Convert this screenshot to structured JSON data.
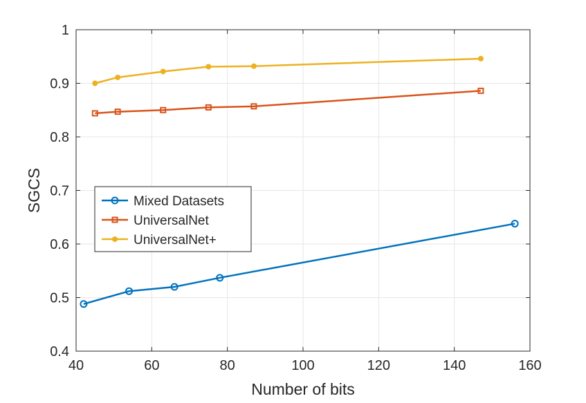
{
  "chart_data": {
    "type": "line",
    "title": "",
    "xlabel": "Number of bits",
    "ylabel": "SGCS",
    "xlim": [
      40,
      160
    ],
    "ylim": [
      0.4,
      1
    ],
    "xticks": [
      40,
      60,
      80,
      100,
      120,
      140,
      160
    ],
    "xtick_labels": [
      "40",
      "60",
      "80",
      "100",
      "120",
      "140",
      "160"
    ],
    "yticks": [
      0.4,
      0.5,
      0.6,
      0.7,
      0.8,
      0.9,
      1
    ],
    "ytick_labels": [
      "0.4",
      "0.5",
      "0.6",
      "0.7",
      "0.8",
      "0.9",
      "1"
    ],
    "grid": true,
    "legend_position": "center-left",
    "series": [
      {
        "name": "Mixed Datasets",
        "color": "#0072BD",
        "marker": "circle",
        "x": [
          42,
          54,
          66,
          78,
          156
        ],
        "y": [
          0.488,
          0.512,
          0.52,
          0.537,
          0.638
        ]
      },
      {
        "name": "UniversalNet",
        "color": "#D95319",
        "marker": "square",
        "x": [
          45,
          51,
          63,
          75,
          87,
          147
        ],
        "y": [
          0.844,
          0.847,
          0.85,
          0.855,
          0.857,
          0.886
        ]
      },
      {
        "name": "UniversalNet+",
        "color": "#EDB120",
        "marker": "dot",
        "x": [
          45,
          51,
          63,
          75,
          87,
          147
        ],
        "y": [
          0.9,
          0.911,
          0.922,
          0.931,
          0.932,
          0.946
        ]
      }
    ]
  }
}
